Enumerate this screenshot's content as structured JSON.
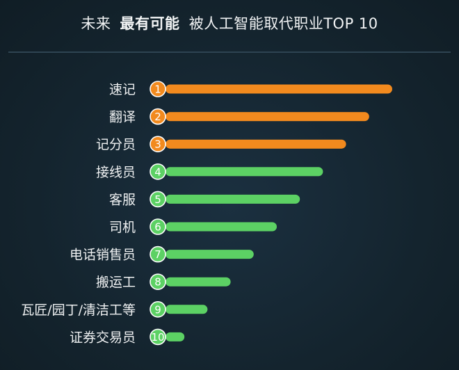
{
  "title": {
    "part1": "未来",
    "part2": "最有可能",
    "part3": "被人工智能取代职业TOP 10"
  },
  "colors": {
    "background": "#14242e",
    "top3": "#f28a1e",
    "others": "#5cd164",
    "text": "#f0f2f3"
  },
  "chart_data": {
    "type": "bar",
    "orientation": "horizontal",
    "categories": [
      "速记",
      "翻译",
      "记分员",
      "接线员",
      "客服",
      "司机",
      "电话销售员",
      "搬运工",
      "瓦匠/园丁/清洁工等",
      "证券交易员"
    ],
    "ranks": [
      "1",
      "2",
      "3",
      "4",
      "5",
      "6",
      "7",
      "8",
      "9",
      "10"
    ],
    "values": [
      10,
      9,
      8,
      7,
      6,
      5,
      4,
      3,
      2,
      1
    ],
    "highlight_top": 3,
    "title": "未来 最有可能 被人工智能取代职业TOP 10",
    "xlabel": "",
    "ylabel": "",
    "grid": false,
    "legend": "none"
  }
}
